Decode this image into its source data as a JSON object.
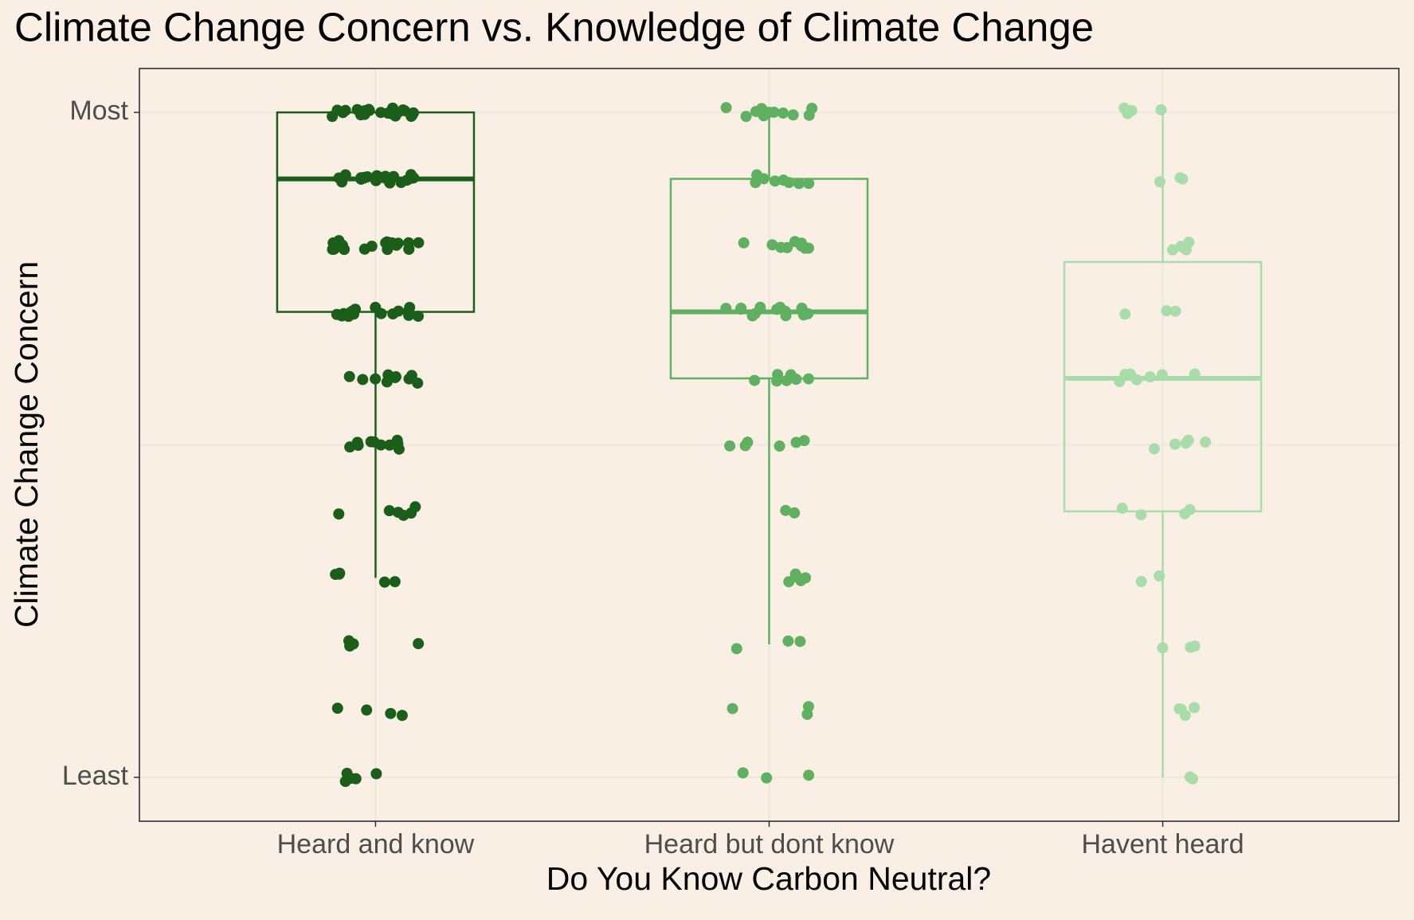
{
  "chart_data": {
    "type": "boxplot",
    "title": "Climate Change Concern vs. Knowledge of Climate Change",
    "x_label": "Do You Know Carbon Neutral?",
    "y_label": "Climate Change Concern",
    "categories": [
      "Heard and know",
      "Heard but dont know",
      "Havent heard"
    ],
    "colors": [
      "#1a5e1a",
      "#5fb060",
      "#a8dca8"
    ],
    "boxes": [
      {
        "low": 4,
        "q1": 8,
        "median": 10,
        "q3": 11,
        "high": 11
      },
      {
        "low": 3,
        "q1": 7,
        "median": 8,
        "q3": 10,
        "high": 11
      },
      {
        "low": 1,
        "q1": 5,
        "median": 7,
        "q3": 8.75,
        "high": 11
      }
    ],
    "points": [
      [
        11,
        11,
        11,
        11,
        11,
        11,
        11,
        11,
        11,
        11,
        11,
        11,
        11,
        11,
        11,
        11,
        11,
        11,
        11,
        11,
        11,
        11,
        11,
        11,
        10,
        10,
        10,
        10,
        10,
        10,
        10,
        10,
        10,
        10,
        10,
        10,
        10,
        10,
        10,
        10,
        10,
        10,
        10,
        10,
        9,
        9,
        9,
        9,
        9,
        9,
        9,
        9,
        9,
        9,
        9,
        9,
        9,
        9,
        9,
        9,
        9,
        9,
        8,
        8,
        8,
        8,
        8,
        8,
        8,
        8,
        8,
        8,
        8,
        8,
        8,
        8,
        8,
        8,
        7,
        7,
        7,
        7,
        7,
        7,
        7,
        7,
        7,
        7,
        6,
        6,
        6,
        6,
        6,
        6,
        6,
        6,
        6,
        6,
        5,
        5,
        5,
        5,
        5,
        5,
        4,
        4,
        4,
        4,
        4,
        3,
        3,
        3,
        3,
        2,
        2,
        2,
        2,
        1,
        1,
        1,
        1,
        1
      ],
      [
        11,
        11,
        11,
        11,
        11,
        11,
        11,
        11,
        11,
        11,
        11,
        11,
        10,
        10,
        10,
        10,
        10,
        10,
        10,
        10,
        9,
        9,
        9,
        9,
        9,
        9,
        9,
        9,
        9,
        8,
        8,
        8,
        8,
        8,
        8,
        8,
        8,
        8,
        8,
        8,
        8,
        8,
        8,
        7,
        7,
        7,
        7,
        7,
        7,
        7,
        6,
        6,
        6,
        6,
        6,
        6,
        5,
        5,
        4,
        4,
        4,
        4,
        4,
        3,
        3,
        3,
        2,
        2,
        2,
        1,
        1,
        1
      ],
      [
        11,
        11,
        11,
        11,
        10,
        10,
        10,
        9,
        9,
        9,
        9,
        8,
        8,
        8,
        7,
        7,
        7,
        7,
        7,
        7,
        7,
        6,
        6,
        6,
        6,
        6,
        5,
        5,
        5,
        5,
        4,
        4,
        3,
        3,
        3,
        2,
        2,
        2,
        2,
        1,
        1
      ]
    ],
    "ylim": [
      0.34,
      11.66
    ],
    "yticks": [
      {
        "value": 1,
        "label": "Least"
      },
      {
        "value": 11,
        "label": "Most"
      }
    ],
    "y_minor_grid": [
      6
    ],
    "grid": true
  }
}
